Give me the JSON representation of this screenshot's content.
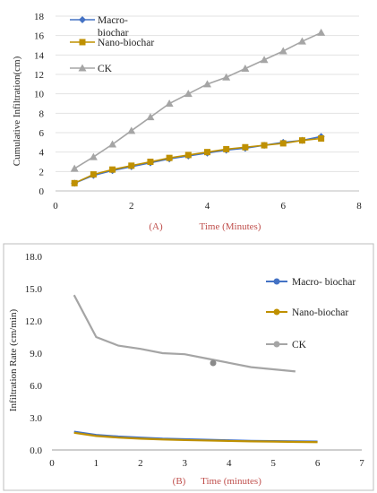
{
  "chart_data": [
    {
      "type": "line",
      "panel_label": "(A)",
      "title": "",
      "xlabel": "Time (Minutes)",
      "ylabel": "Cumulative Infiltration(cm)",
      "xlim": [
        0,
        8
      ],
      "ylim": [
        0,
        18
      ],
      "x_ticks": [
        "0",
        "2",
        "4",
        "6",
        "8"
      ],
      "y_ticks": [
        "0",
        "2",
        "4",
        "6",
        "8",
        "10",
        "12",
        "14",
        "16",
        "18"
      ],
      "grid": true,
      "legend_position": "top-left",
      "x": [
        0.5,
        1,
        1.5,
        2,
        2.5,
        3,
        3.5,
        4,
        4.5,
        5,
        5.5,
        6,
        6.5,
        7
      ],
      "series": [
        {
          "name": "Macro-biochar",
          "legend_lines": [
            "Macro-",
            "biochar"
          ],
          "color": "#4472C4",
          "marker": "diamond",
          "values": [
            0.8,
            1.6,
            2.1,
            2.5,
            2.9,
            3.3,
            3.6,
            3.9,
            4.2,
            4.4,
            4.7,
            5.0,
            5.2,
            5.6
          ]
        },
        {
          "name": "Nano-biochar",
          "legend_lines": [
            "Nano-biochar"
          ],
          "color": "#BF9000",
          "marker": "square",
          "values": [
            0.8,
            1.7,
            2.2,
            2.6,
            3.0,
            3.4,
            3.7,
            4.0,
            4.3,
            4.5,
            4.7,
            4.9,
            5.2,
            5.4
          ]
        },
        {
          "name": "CK",
          "legend_lines": [
            "CK"
          ],
          "color": "#A5A5A5",
          "marker": "triangle",
          "values": [
            2.3,
            3.5,
            4.8,
            6.2,
            7.6,
            9.0,
            10.0,
            11.0,
            11.7,
            12.6,
            13.5,
            14.4,
            15.4,
            16.3
          ]
        }
      ]
    },
    {
      "type": "line",
      "panel_label": "(B)",
      "title": "",
      "xlabel": "Time (minutes)",
      "ylabel": "Infiltration Rate (cm/min)",
      "xlim": [
        0,
        7
      ],
      "ylim": [
        0,
        18
      ],
      "x_ticks": [
        "0",
        "1",
        "2",
        "3",
        "4",
        "5",
        "6",
        "7"
      ],
      "y_ticks": [
        "0.0",
        "3.0",
        "6.0",
        "9.0",
        "12.0",
        "15.0",
        "18.0"
      ],
      "grid": false,
      "legend_position": "right",
      "series": [
        {
          "name": "Macro- biochar",
          "color": "#4472C4",
          "x": [
            0.5,
            1,
            1.5,
            2,
            2.5,
            3,
            3.5,
            4,
            4.5,
            5,
            5.5,
            6
          ],
          "values": [
            1.7,
            1.4,
            1.25,
            1.15,
            1.05,
            1.0,
            0.95,
            0.9,
            0.85,
            0.82,
            0.8,
            0.78
          ]
        },
        {
          "name": "Nano-biochar",
          "color": "#BF9000",
          "x": [
            0.5,
            1,
            1.5,
            2,
            2.5,
            3,
            3.5,
            4,
            4.5,
            5,
            5.5,
            6
          ],
          "values": [
            1.6,
            1.3,
            1.15,
            1.05,
            0.98,
            0.92,
            0.88,
            0.84,
            0.8,
            0.78,
            0.75,
            0.73
          ]
        },
        {
          "name": "CK",
          "color": "#A5A5A5",
          "x": [
            0.5,
            1,
            1.5,
            2,
            2.5,
            3,
            3.5,
            4,
            4.5,
            5,
            5.5
          ],
          "values": [
            14.4,
            10.5,
            9.7,
            9.4,
            9.0,
            8.9,
            8.5,
            8.1,
            7.7,
            7.5,
            7.3
          ]
        }
      ]
    }
  ]
}
